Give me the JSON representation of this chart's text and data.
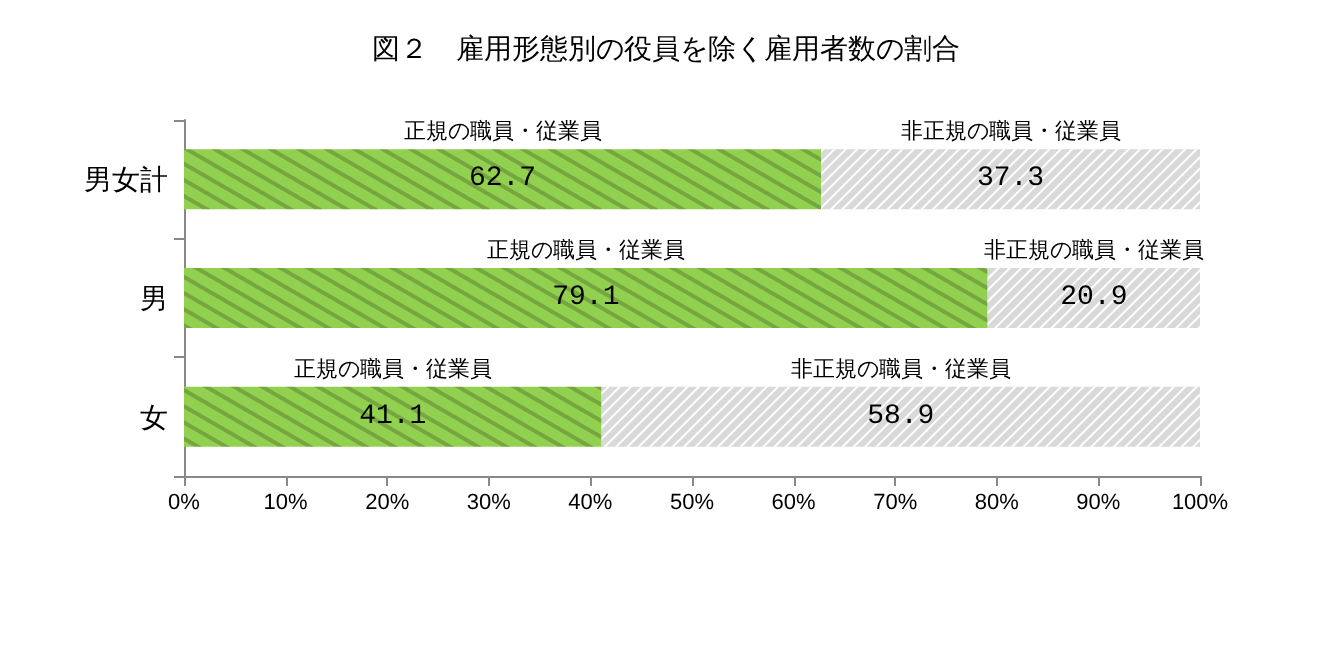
{
  "chart_data": {
    "type": "bar",
    "orientation": "horizontal",
    "stacked": true,
    "title": "図２　雇用形態別の役員を除く雇用者数の割合",
    "categories": [
      "男女計",
      "男",
      "女"
    ],
    "series": [
      {
        "name": "正規の職員・従業員",
        "color": "#92d050",
        "values": [
          62.7,
          79.1,
          41.1
        ]
      },
      {
        "name": "非正規の職員・従業員",
        "color": "#d9d9d9",
        "values": [
          37.3,
          20.9,
          58.9
        ]
      }
    ],
    "xlim": [
      0,
      100
    ],
    "xticks": [
      {
        "value": 0,
        "label": "0%"
      },
      {
        "value": 10,
        "label": "10%"
      },
      {
        "value": 20,
        "label": "20%"
      },
      {
        "value": 30,
        "label": "30%"
      },
      {
        "value": 40,
        "label": "40%"
      },
      {
        "value": 50,
        "label": "50%"
      },
      {
        "value": 60,
        "label": "60%"
      },
      {
        "value": 70,
        "label": "70%"
      },
      {
        "value": 80,
        "label": "80%"
      },
      {
        "value": 90,
        "label": "90%"
      },
      {
        "value": 100,
        "label": "100%"
      }
    ],
    "data_labels": true,
    "grid": false,
    "legend": false
  }
}
